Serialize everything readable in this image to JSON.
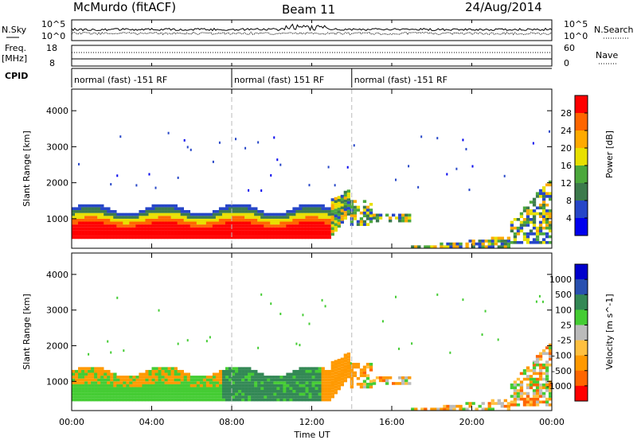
{
  "header": {
    "title": "McMurdo (fitACF)",
    "beam": "Beam 11",
    "date": "24/Aug/2014"
  },
  "top_panels": {
    "nsky_label": "N.Sky",
    "nsearch_label": "N.Search",
    "freq_label_1": "Freq.",
    "freq_label_2": "[MHz]",
    "nave_label": "Nave",
    "cpid_label": "CPID",
    "nsky_top": "10^5",
    "nsky_bottom": "10^0",
    "nsearch_top": "10^5",
    "nsearch_bottom": "10^0",
    "freq_top": "18",
    "freq_bottom": "8",
    "nave_top": "60",
    "nave_bottom": "0"
  },
  "cpid_segments": [
    {
      "start_hour": 0.0,
      "end_hour": 8.0,
      "label": "normal (fast) -151 RF"
    },
    {
      "start_hour": 8.0,
      "end_hour": 14.0,
      "label": "normal (fast) 151 RF"
    },
    {
      "start_hour": 14.0,
      "end_hour": 24.0,
      "label": "normal (fast) -151 RF"
    }
  ],
  "colors": {
    "power": [
      "#0000ee",
      "#2646c8",
      "#3c7a4c",
      "#4ca83c",
      "#e8e000",
      "#ffaa00",
      "#ff6600",
      "#ff0000"
    ],
    "velocity": [
      "#ff0000",
      "#ff6600",
      "#ff9900",
      "#ffc040",
      "#bbbbbb",
      "#44cc33",
      "#338855",
      "#2850b0",
      "#0000cc"
    ]
  },
  "chart_data": [
    {
      "type": "heatmap",
      "name": "power",
      "ylabel": "Slant Range [km]",
      "xlim_hours": [
        0,
        24
      ],
      "ylim": [
        180,
        4600
      ],
      "yticks": [
        "1000",
        "2000",
        "3000",
        "4000"
      ],
      "ytick_values": [
        1000,
        2000,
        3000,
        4000
      ],
      "colorbar_label": "Power [dB]",
      "colorbar_ticks": [
        "4",
        "8",
        "12",
        "16",
        "20",
        "24",
        "28"
      ],
      "colorbar_range": [
        0,
        32
      ]
    },
    {
      "type": "heatmap",
      "name": "velocity",
      "ylabel": "Slant Range [km]",
      "xlim_hours": [
        0,
        24
      ],
      "ylim": [
        180,
        4600
      ],
      "yticks": [
        "1000",
        "2000",
        "3000",
        "4000"
      ],
      "ytick_values": [
        1000,
        2000,
        3000,
        4000
      ],
      "colorbar_label": "Velocity [m s^-1]",
      "colorbar_ticks": [
        "1000",
        "500",
        "100",
        "25",
        "-25",
        "-100",
        "-500",
        "-1000"
      ],
      "xlabel": "Time UT",
      "xticks": [
        "00:00",
        "04:00",
        "08:00",
        "12:00",
        "16:00",
        "20:00",
        "00:00"
      ],
      "xtick_hours": [
        0,
        4,
        8,
        12,
        16,
        20,
        24
      ]
    }
  ]
}
